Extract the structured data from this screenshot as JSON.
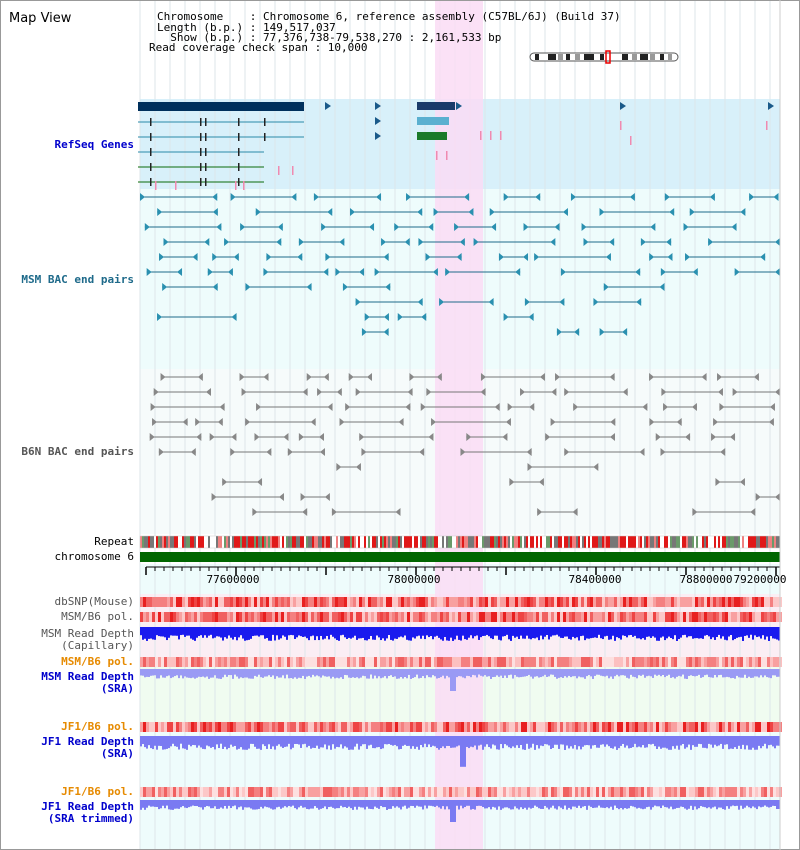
{
  "title": "Map View",
  "info": {
    "line1": "Chromosome    : Chromosome 6, reference assembly (C57BL/6J) (Build 37)",
    "line2": "Length (b.p.) : 149,517,037",
    "line3": "  Show (b.p.) : 77,376,738-79,538,270 : 2,161,533 bp",
    "line4": "Read coverage check span : 10,000"
  },
  "tracks": {
    "refseq": "RefSeq Genes",
    "msm_bac": "MSM BAC end pairs",
    "b6n_bac": "B6N BAC end pairs",
    "repeat": "Repeat",
    "chromosome": "chromosome 6",
    "dbsnp": "dbSNP(Mouse)",
    "msm_b6_pol": "MSM/B6 pol.",
    "msm_depth_cap_1": "MSM Read Depth",
    "msm_depth_cap_2": "(Capillary)",
    "msm_b6_pol_sra": "MSM/B6 pol.",
    "msm_depth_sra_1": "MSM Read Depth",
    "msm_depth_sra_2": "(SRA)",
    "jf1_b6_pol": "JF1/B6 pol.",
    "jf1_depth_1": "JF1 Read Depth",
    "jf1_depth_2": "(SRA)",
    "jf1_b6_pol_trim": "JF1/B6 pol.",
    "jf1_depth_trim_1": "JF1 Read Depth",
    "jf1_depth_trim_2": "(SRA trimmed)"
  },
  "axis_ticks": [
    "77600000",
    "78000000",
    "78400000",
    "78800000",
    "79200000"
  ],
  "colors": {
    "refseq_bg": "#d8f0fa",
    "bac_bg": "#eefcfc",
    "highlight": "#fadcf4",
    "msm_line": "#1e6a8a",
    "b6n_line": "#777777",
    "chromosome": "#006600",
    "depth_dark": "#1a1aee",
    "depth_light": "#7a7af2",
    "pol_red": "#ee4040",
    "orange_label": "#e68a00",
    "blue_label": "#0000cc"
  }
}
